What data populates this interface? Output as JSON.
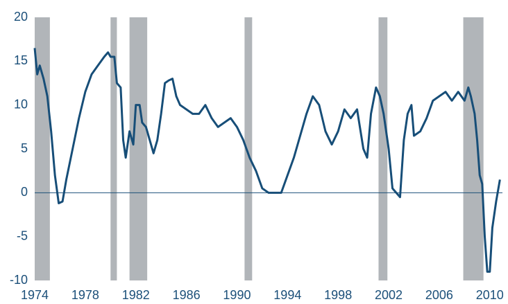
{
  "chart_data": {
    "type": "line",
    "x": [
      1974.0,
      1974.2,
      1974.4,
      1974.7,
      1975.0,
      1975.3,
      1975.6,
      1975.9,
      1976.2,
      1976.5,
      1977.0,
      1977.5,
      1978.0,
      1978.5,
      1979.0,
      1979.5,
      1979.8,
      1980.0,
      1980.3,
      1980.5,
      1980.8,
      1981.0,
      1981.2,
      1981.5,
      1981.8,
      1982.0,
      1982.3,
      1982.5,
      1982.8,
      1983.1,
      1983.4,
      1983.7,
      1984.0,
      1984.3,
      1984.6,
      1984.9,
      1985.2,
      1985.5,
      1986.0,
      1986.5,
      1987.0,
      1987.5,
      1988.0,
      1988.5,
      1989.0,
      1989.5,
      1990.0,
      1990.5,
      1991.0,
      1991.5,
      1992.0,
      1992.5,
      1993.0,
      1993.5,
      1994.0,
      1994.5,
      1995.0,
      1995.5,
      1996.0,
      1996.5,
      1997.0,
      1997.5,
      1998.0,
      1998.5,
      1999.0,
      1999.5,
      2000.0,
      2000.3,
      2000.6,
      2001.0,
      2001.3,
      2001.6,
      2002.0,
      2002.3,
      2002.6,
      2002.9,
      2003.2,
      2003.5,
      2003.8,
      2004.0,
      2004.5,
      2005.0,
      2005.5,
      2006.0,
      2006.5,
      2007.0,
      2007.5,
      2008.0,
      2008.3,
      2008.5,
      2008.8,
      2009.0,
      2009.2,
      2009.4,
      2009.6,
      2009.8,
      2010.0,
      2010.2,
      2010.5,
      2010.8
    ],
    "series": [
      {
        "color": "#174e78",
        "values": [
          16.5,
          13.5,
          14.5,
          13,
          11,
          7,
          2,
          -1.2,
          -1,
          1.5,
          5,
          8.5,
          11.5,
          13.5,
          14.5,
          15.5,
          16,
          15.5,
          15.5,
          12.5,
          12,
          6,
          4,
          7,
          5.5,
          10,
          10,
          8,
          7.5,
          6,
          4.5,
          6,
          9,
          12.5,
          12.8,
          13,
          11,
          10,
          9.5,
          9,
          9,
          10,
          8.5,
          7.5,
          8,
          8.5,
          7.5,
          6,
          4,
          2.5,
          0.5,
          0,
          0,
          0,
          2,
          4,
          6.5,
          9,
          11,
          10,
          7,
          5.5,
          7,
          9.5,
          8.5,
          9.5,
          5,
          4,
          9,
          12,
          11,
          9,
          5,
          0.5,
          0,
          -0.5,
          6,
          9,
          10,
          6.5,
          7,
          8.5,
          10.5,
          11,
          11.5,
          10.5,
          11.5,
          10.5,
          12,
          11,
          9,
          6,
          2,
          1,
          -5,
          -9,
          -9,
          -4,
          -1,
          1.5
        ]
      }
    ],
    "shaded_ranges": [
      [
        1974.0,
        1975.2
      ],
      [
        1980.0,
        1980.5
      ],
      [
        1981.5,
        1982.9
      ],
      [
        1990.6,
        1991.2
      ],
      [
        2001.2,
        2001.9
      ],
      [
        2007.9,
        2009.5
      ]
    ],
    "shade_color": "#b1b5b9",
    "xlim": [
      1974,
      2011
    ],
    "xticks": [
      1974,
      1978,
      1982,
      1986,
      1990,
      1994,
      1998,
      2002,
      2006,
      2010
    ],
    "ylim": [
      -10,
      20
    ],
    "yticks": [
      -10,
      -5,
      0,
      5,
      10,
      15,
      20
    ]
  }
}
